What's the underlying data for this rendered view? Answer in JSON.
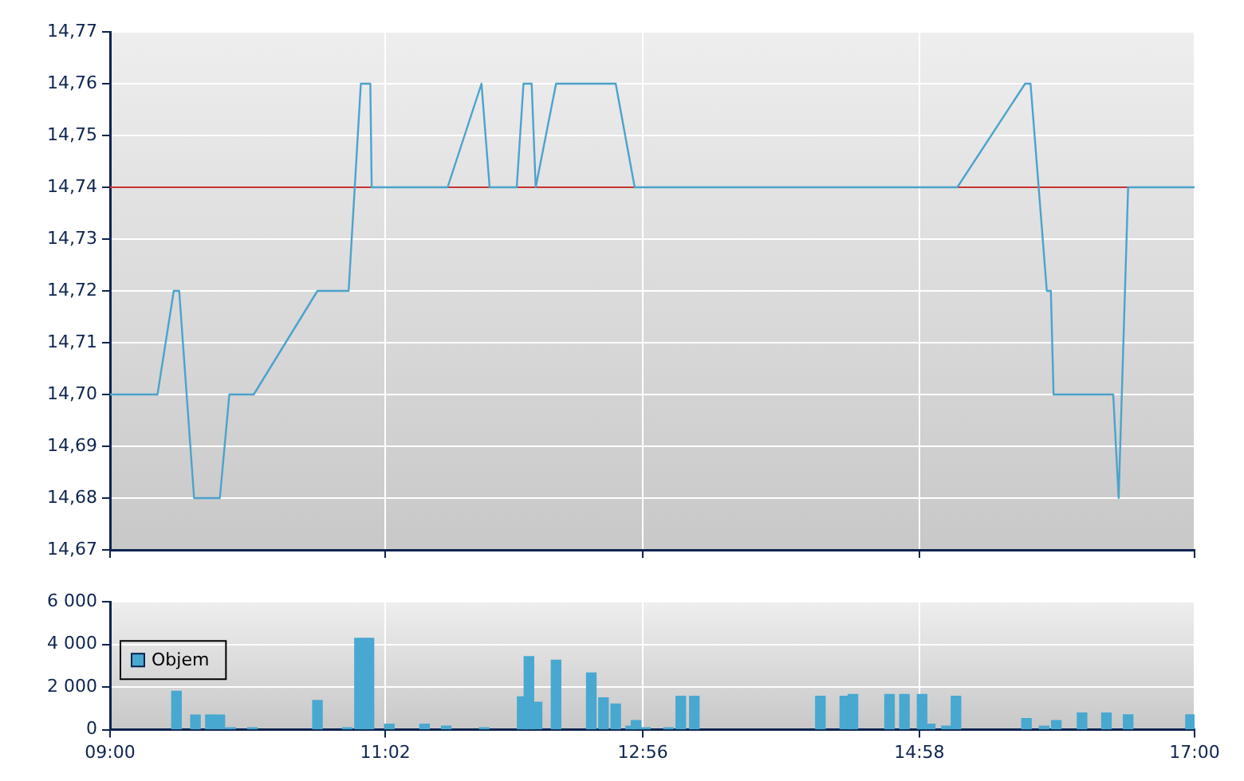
{
  "chart_data": [
    {
      "type": "line",
      "color": "#4ba3cc",
      "x": [
        9.0,
        9.35,
        9.47,
        9.51,
        9.62,
        9.81,
        9.88,
        10.06,
        10.53,
        10.76,
        10.85,
        10.92,
        10.93,
        11.49,
        11.74,
        11.8,
        12.0,
        12.05,
        12.11,
        12.14,
        12.29,
        12.73,
        12.87,
        15.25,
        15.75,
        15.79,
        15.91,
        15.94,
        15.96,
        16.4,
        16.44,
        16.51,
        17.0
      ],
      "values": [
        14.7,
        14.7,
        14.72,
        14.72,
        14.68,
        14.68,
        14.7,
        14.7,
        14.72,
        14.72,
        14.76,
        14.76,
        14.74,
        14.74,
        14.76,
        14.74,
        14.74,
        14.76,
        14.76,
        14.74,
        14.76,
        14.76,
        14.74,
        14.74,
        14.76,
        14.76,
        14.72,
        14.72,
        14.7,
        14.7,
        14.68,
        14.74,
        14.74
      ],
      "xlim": [
        9,
        17
      ],
      "xticks": [
        {
          "value": 9,
          "label": null
        },
        {
          "value": 11.03,
          "label": null
        },
        {
          "value": 12.93,
          "label": null
        },
        {
          "value": 14.97,
          "label": null
        },
        {
          "value": 17,
          "label": null
        }
      ],
      "ylim": [
        14.67,
        14.77
      ],
      "yticks": [
        {
          "value": 14.67,
          "label": "14,67"
        },
        {
          "value": 14.68,
          "label": "14,68"
        },
        {
          "value": 14.69,
          "label": "14,69"
        },
        {
          "value": 14.7,
          "label": "14,70"
        },
        {
          "value": 14.71,
          "label": "14,71"
        },
        {
          "value": 14.72,
          "label": "14,72"
        },
        {
          "value": 14.73,
          "label": "14,73"
        },
        {
          "value": 14.74,
          "label": "14,74"
        },
        {
          "value": 14.75,
          "label": "14,75"
        },
        {
          "value": 14.76,
          "label": "14,76"
        },
        {
          "value": 14.77,
          "label": "14,77"
        }
      ],
      "tick_labels": "y",
      "grid": true,
      "ref_lines": [
        {
          "axis": "y",
          "value": 14.74,
          "color": "#c83232"
        }
      ]
    },
    {
      "type": "bar",
      "x": [
        9.49,
        9.63,
        9.74,
        9.81,
        9.89,
        10.05,
        10.53,
        10.75,
        10.84,
        10.91,
        11.06,
        11.32,
        11.48,
        11.76,
        12.04,
        12.09,
        12.15,
        12.29,
        12.55,
        12.64,
        12.73,
        12.84,
        12.88,
        12.95,
        13.12,
        13.21,
        13.31,
        14.24,
        14.42,
        14.48,
        14.75,
        14.86,
        14.99,
        15.05,
        15.17,
        15.24,
        15.76,
        15.89,
        15.98,
        16.17,
        16.35,
        16.51,
        16.97
      ],
      "series": [
        {
          "name": "Objem",
          "color": "#48a8d0",
          "values": [
            1800,
            690,
            690,
            690,
            90,
            90,
            1370,
            90,
            4290,
            4290,
            260,
            260,
            170,
            90,
            1540,
            3430,
            1290,
            3260,
            2660,
            1490,
            1200,
            170,
            430,
            90,
            90,
            1570,
            1570,
            1570,
            1570,
            1650,
            1650,
            1650,
            1650,
            260,
            170,
            1570,
            520,
            170,
            430,
            780,
            780,
            700,
            700
          ]
        }
      ],
      "xlim": [
        9,
        17
      ],
      "xticks": [
        {
          "value": 9,
          "label": "09:00"
        },
        {
          "value": 11.03,
          "label": "11:02"
        },
        {
          "value": 12.93,
          "label": "12:56"
        },
        {
          "value": 14.97,
          "label": "14:58"
        },
        {
          "value": 17,
          "label": "17:00"
        }
      ],
      "ylim": [
        0,
        6000
      ],
      "yticks": [
        {
          "value": 0,
          "label": "0"
        },
        {
          "value": 2000,
          "label": "2 000"
        },
        {
          "value": 4000,
          "label": "4 000"
        },
        {
          "value": 6000,
          "label": "6 000"
        }
      ],
      "grid": true,
      "legend": "top left"
    }
  ]
}
